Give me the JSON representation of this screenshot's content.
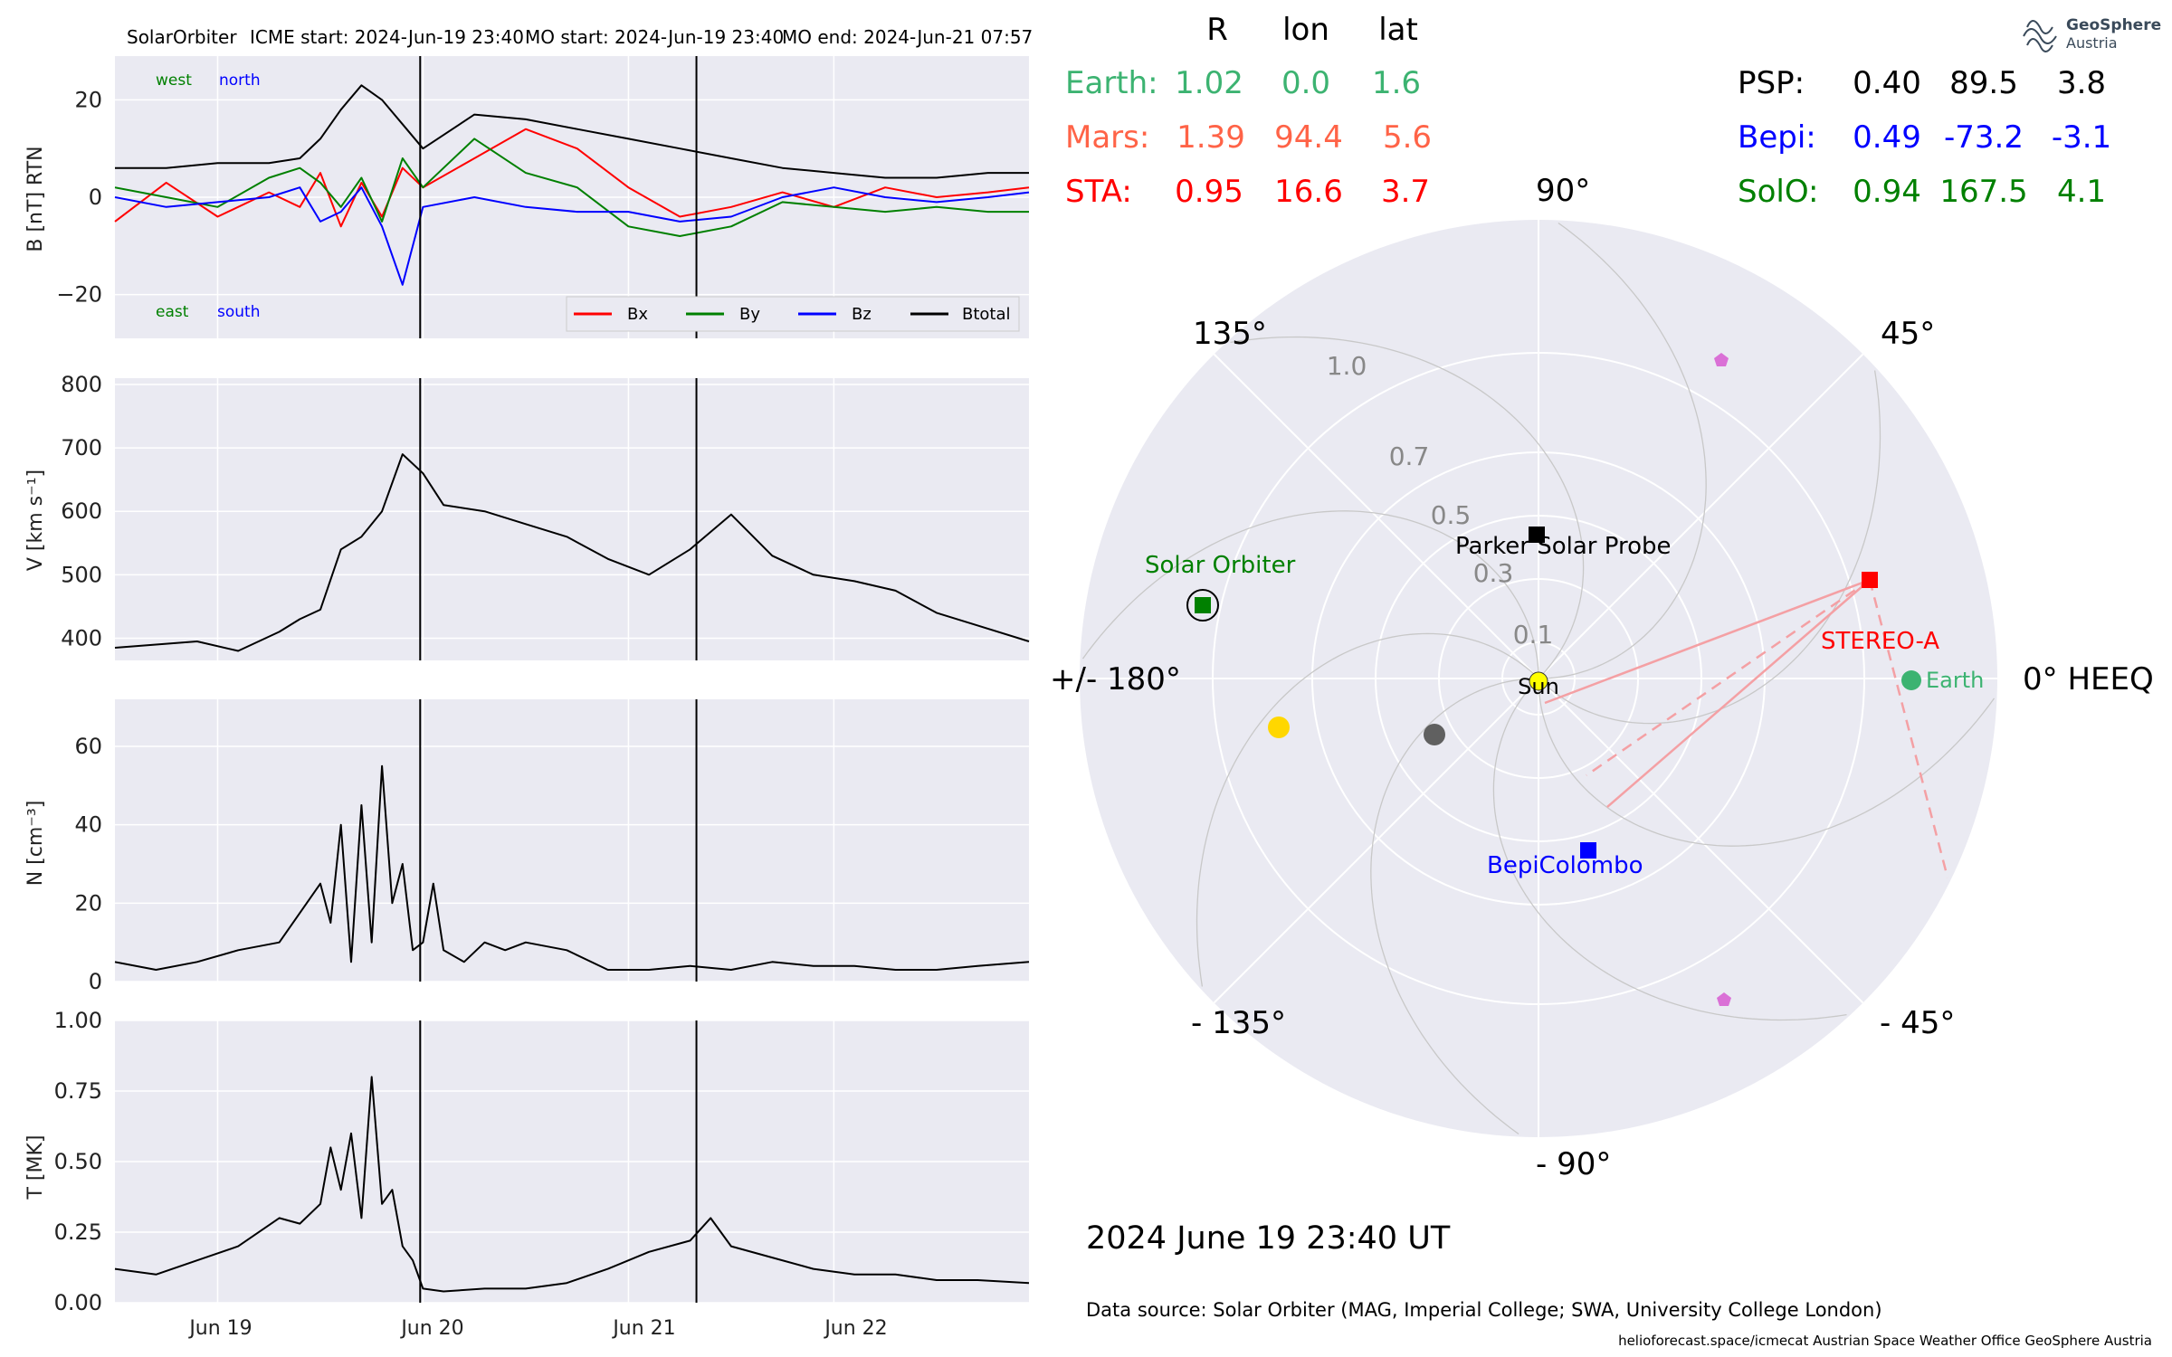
{
  "header": {
    "spacecraft": "SolarOrbiter",
    "icme_start": "ICME start: 2024-Jun-19 23:40",
    "mo_start": "MO start: 2024-Jun-19 23:40",
    "mo_end": "MO end: 2024-Jun-21 07:57"
  },
  "colors": {
    "bx": "#ff0000",
    "by": "#008000",
    "bz": "#0000ff",
    "btotal": "#000000",
    "panel_bg": "#eaeaf2",
    "earth": "#3cb371",
    "mars": "#ff6347",
    "sta": "#ff0000",
    "psp": "#000000",
    "bepi": "#0000ff",
    "solo": "#008000",
    "planet_pink": "#da70d6",
    "venus": "#ffd700",
    "mercury": "#606060"
  },
  "timeseries": {
    "x_ticks": [
      "Jun 19",
      "Jun 20",
      "Jun 21",
      "Jun 22"
    ],
    "x_range_days": [
      "2024-06-18 12:00",
      "2024-06-22 23:00"
    ],
    "event_lines": [
      "2024-06-19 23:40",
      "2024-06-21 07:57"
    ],
    "panels": [
      {
        "id": "B",
        "ylabel": "B [nT] RTN",
        "ylim": [
          -29,
          29
        ],
        "yticks": [
          {
            "v": 20,
            "label": "20"
          },
          {
            "v": 0,
            "label": "0"
          },
          {
            "v": -20,
            "label": "−20"
          }
        ],
        "annotations": {
          "west": "west",
          "north": "north",
          "east": "east",
          "south": "south"
        },
        "legend": [
          "Bx",
          "By",
          "Bz",
          "Btotal"
        ]
      },
      {
        "id": "V",
        "ylabel": "V [km s⁻¹]",
        "ylim": [
          365,
          810
        ],
        "yticks": [
          {
            "v": 800,
            "label": "800"
          },
          {
            "v": 700,
            "label": "700"
          },
          {
            "v": 600,
            "label": "600"
          },
          {
            "v": 500,
            "label": "500"
          },
          {
            "v": 400,
            "label": "400"
          }
        ]
      },
      {
        "id": "N",
        "ylabel": "N [cm⁻³]",
        "ylim": [
          0,
          72
        ],
        "yticks": [
          {
            "v": 60,
            "label": "60"
          },
          {
            "v": 40,
            "label": "40"
          },
          {
            "v": 20,
            "label": "20"
          },
          {
            "v": 0,
            "label": "0"
          }
        ]
      },
      {
        "id": "T",
        "ylabel": "T [MK]",
        "ylim": [
          0,
          1.0
        ],
        "yticks": [
          {
            "v": 1.0,
            "label": "1.00"
          },
          {
            "v": 0.75,
            "label": "0.75"
          },
          {
            "v": 0.5,
            "label": "0.50"
          },
          {
            "v": 0.25,
            "label": "0.25"
          },
          {
            "v": 0.0,
            "label": "0.00"
          }
        ]
      }
    ]
  },
  "chart_data": [
    {
      "type": "line",
      "title": "SolarOrbiter    ICME start: 2024-Jun-19 23:40   MO start: 2024-Jun-19 23:40   MO end: 2024-Jun-21 07:57",
      "ylabel": "B [nT] RTN",
      "x_days": [
        0.0,
        0.25,
        0.5,
        0.75,
        0.9,
        1.0,
        1.1,
        1.2,
        1.3,
        1.4,
        1.5,
        1.75,
        2.0,
        2.25,
        2.5,
        2.75,
        3.0,
        3.25,
        3.5,
        3.75,
        4.0,
        4.25,
        4.45
      ],
      "series": [
        {
          "name": "Bx",
          "values": [
            -5,
            3,
            -4,
            1,
            -2,
            5,
            -6,
            3,
            -4,
            6,
            2,
            8,
            14,
            10,
            2,
            -4,
            -2,
            1,
            -2,
            2,
            0,
            1,
            2
          ]
        },
        {
          "name": "By",
          "values": [
            2,
            0,
            -2,
            4,
            6,
            3,
            -2,
            4,
            -5,
            8,
            2,
            12,
            5,
            2,
            -6,
            -8,
            -6,
            -1,
            -2,
            -3,
            -2,
            -3,
            -3
          ]
        },
        {
          "name": "Bz",
          "values": [
            0,
            -2,
            -1,
            0,
            2,
            -5,
            -3,
            2,
            -6,
            -18,
            -2,
            0,
            -2,
            -3,
            -3,
            -5,
            -4,
            0,
            2,
            0,
            -1,
            0,
            1
          ]
        },
        {
          "name": "Btotal",
          "values": [
            6,
            6,
            7,
            7,
            8,
            12,
            18,
            23,
            20,
            15,
            10,
            17,
            16,
            14,
            12,
            10,
            8,
            6,
            5,
            4,
            4,
            5,
            5
          ]
        }
      ]
    },
    {
      "type": "line",
      "ylabel": "V [km s⁻¹]",
      "x_days": [
        0.0,
        0.2,
        0.4,
        0.6,
        0.8,
        0.9,
        1.0,
        1.1,
        1.2,
        1.3,
        1.4,
        1.5,
        1.6,
        1.8,
        2.0,
        2.2,
        2.4,
        2.6,
        2.8,
        3.0,
        3.2,
        3.4,
        3.6,
        3.8,
        4.0,
        4.2,
        4.45
      ],
      "series": [
        {
          "name": "V",
          "values": [
            385,
            390,
            395,
            380,
            410,
            430,
            445,
            540,
            560,
            600,
            690,
            660,
            610,
            600,
            580,
            560,
            525,
            500,
            540,
            595,
            530,
            500,
            490,
            475,
            440,
            420,
            395
          ]
        }
      ]
    },
    {
      "type": "line",
      "ylabel": "N [cm⁻³]",
      "x_days": [
        0.0,
        0.2,
        0.4,
        0.6,
        0.8,
        1.0,
        1.05,
        1.1,
        1.15,
        1.2,
        1.25,
        1.3,
        1.35,
        1.4,
        1.45,
        1.5,
        1.55,
        1.6,
        1.7,
        1.8,
        1.9,
        2.0,
        2.2,
        2.4,
        2.6,
        2.8,
        3.0,
        3.2,
        3.4,
        3.6,
        3.8,
        4.0,
        4.2,
        4.45
      ],
      "series": [
        {
          "name": "N",
          "values": [
            5,
            3,
            5,
            8,
            10,
            25,
            15,
            40,
            5,
            45,
            10,
            55,
            20,
            30,
            8,
            10,
            25,
            8,
            5,
            10,
            8,
            10,
            8,
            3,
            3,
            4,
            3,
            5,
            4,
            4,
            3,
            3,
            4,
            5
          ]
        }
      ]
    },
    {
      "type": "line",
      "ylabel": "T [MK]",
      "x_days": [
        0.0,
        0.2,
        0.4,
        0.6,
        0.8,
        0.9,
        1.0,
        1.05,
        1.1,
        1.15,
        1.2,
        1.25,
        1.3,
        1.35,
        1.4,
        1.45,
        1.5,
        1.6,
        1.8,
        2.0,
        2.2,
        2.4,
        2.6,
        2.8,
        2.9,
        3.0,
        3.2,
        3.4,
        3.6,
        3.8,
        4.0,
        4.2,
        4.45
      ],
      "series": [
        {
          "name": "T",
          "values": [
            0.12,
            0.1,
            0.15,
            0.2,
            0.3,
            0.28,
            0.35,
            0.55,
            0.4,
            0.6,
            0.3,
            0.8,
            0.35,
            0.4,
            0.2,
            0.15,
            0.05,
            0.04,
            0.05,
            0.05,
            0.07,
            0.12,
            0.18,
            0.22,
            0.3,
            0.2,
            0.16,
            0.12,
            0.1,
            0.1,
            0.08,
            0.08,
            0.07
          ]
        }
      ]
    },
    {
      "type": "scatter",
      "title": "2024 June 19  23:40 UT",
      "projection": "polar",
      "r_ticks": [
        "0.1",
        "0.3",
        "0.5",
        "0.7",
        "1.0"
      ],
      "theta_ticks": [
        "0° HEEQ",
        "45°",
        "90°",
        "135°",
        "+/- 180°",
        "- 135°",
        "- 90°",
        "- 45°"
      ],
      "points": [
        {
          "name": "Earth",
          "r": 1.02,
          "lon": 0.0
        },
        {
          "name": "STEREO-A",
          "r": 0.95,
          "lon": 16.6
        },
        {
          "name": "Parker Solar Probe",
          "r": 0.4,
          "lon": 89.5
        },
        {
          "name": "BepiColombo",
          "r": 0.49,
          "lon": -73.2
        },
        {
          "name": "Solar Orbiter",
          "r": 0.94,
          "lon": 167.5
        },
        {
          "name": "Sun",
          "r": 0,
          "lon": 0
        }
      ]
    }
  ],
  "positions_table": {
    "headers": [
      "R",
      "lon",
      "lat"
    ],
    "rows_left": [
      {
        "name": "Earth:",
        "R": "1.02",
        "lon": "0.0",
        "lat": "1.6"
      },
      {
        "name": "Mars:",
        "R": "1.39",
        "lon": "94.4",
        "lat": "5.6"
      },
      {
        "name": "STA:",
        "R": "0.95",
        "lon": "16.6",
        "lat": "3.7"
      }
    ],
    "rows_right": [
      {
        "name": "PSP:",
        "R": "0.40",
        "lon": "89.5",
        "lat": "3.8"
      },
      {
        "name": "Bepi:",
        "R": "0.49",
        "lon": "-73.2",
        "lat": "-3.1"
      },
      {
        "name": "SolO:",
        "R": "0.94",
        "lon": "167.5",
        "lat": "4.1"
      }
    ]
  },
  "polar": {
    "date": "2024 June 19  23:40 UT",
    "labels": {
      "sun": "Sun",
      "earth": "Earth",
      "stereo": "STEREO-A",
      "psp": "Parker Solar Probe",
      "bepi": "BepiColombo",
      "solo": "Solar Orbiter"
    }
  },
  "logo": {
    "line1": "GeoSphere",
    "line2": "Austria"
  },
  "footer": {
    "data_source": "Data source: Solar Orbiter (MAG, Imperial College; SWA, University College London)",
    "credits": "helioforecast.space/icmecat   Austrian Space Weather Office   GeoSphere Austria"
  }
}
